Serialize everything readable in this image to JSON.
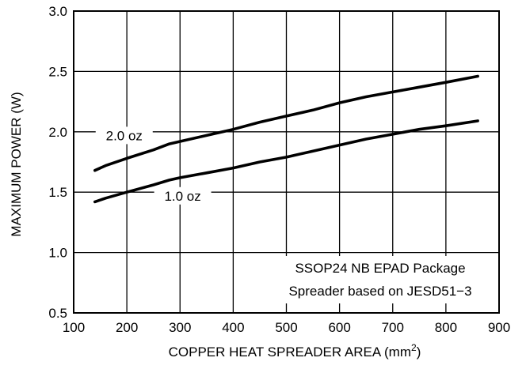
{
  "chart_data": {
    "type": "line",
    "xlabel": "COPPER HEAT SPREADER AREA (mm",
    "xlabel_sup": "2",
    "xlabel_end": ")",
    "ylabel": "MAXIMUM POWER (W)",
    "xlim": [
      100,
      900
    ],
    "ylim": [
      0.5,
      3.0
    ],
    "x_ticks": [
      100,
      200,
      300,
      400,
      500,
      600,
      700,
      800,
      900
    ],
    "y_ticks": [
      0.5,
      1.0,
      1.5,
      2.0,
      2.5,
      3.0
    ],
    "x_tick_labels": [
      "100",
      "200",
      "300",
      "400",
      "500",
      "600",
      "700",
      "800",
      "900"
    ],
    "y_tick_labels": [
      "0.5",
      "1.0",
      "1.5",
      "2.0",
      "2.5",
      "3.0"
    ],
    "grid": true,
    "series": [
      {
        "name": "2.0 oz",
        "x": [
          140,
          160,
          200,
          250,
          280,
          300,
          350,
          400,
          450,
          500,
          550,
          600,
          650,
          700,
          750,
          800,
          860
        ],
        "values": [
          1.68,
          1.72,
          1.78,
          1.85,
          1.9,
          1.92,
          1.97,
          2.02,
          2.08,
          2.13,
          2.18,
          2.24,
          2.29,
          2.33,
          2.37,
          2.41,
          2.46
        ]
      },
      {
        "name": "1.0 oz",
        "x": [
          140,
          160,
          200,
          250,
          280,
          300,
          350,
          400,
          450,
          500,
          550,
          600,
          650,
          700,
          750,
          800,
          860
        ],
        "values": [
          1.42,
          1.45,
          1.5,
          1.56,
          1.6,
          1.62,
          1.66,
          1.7,
          1.75,
          1.79,
          1.84,
          1.89,
          1.94,
          1.98,
          2.02,
          2.05,
          2.09
        ]
      }
    ],
    "annotation_lines": [
      "SSOP24 NB EPAD Package",
      "Spreader based on JESD51−3"
    ]
  }
}
